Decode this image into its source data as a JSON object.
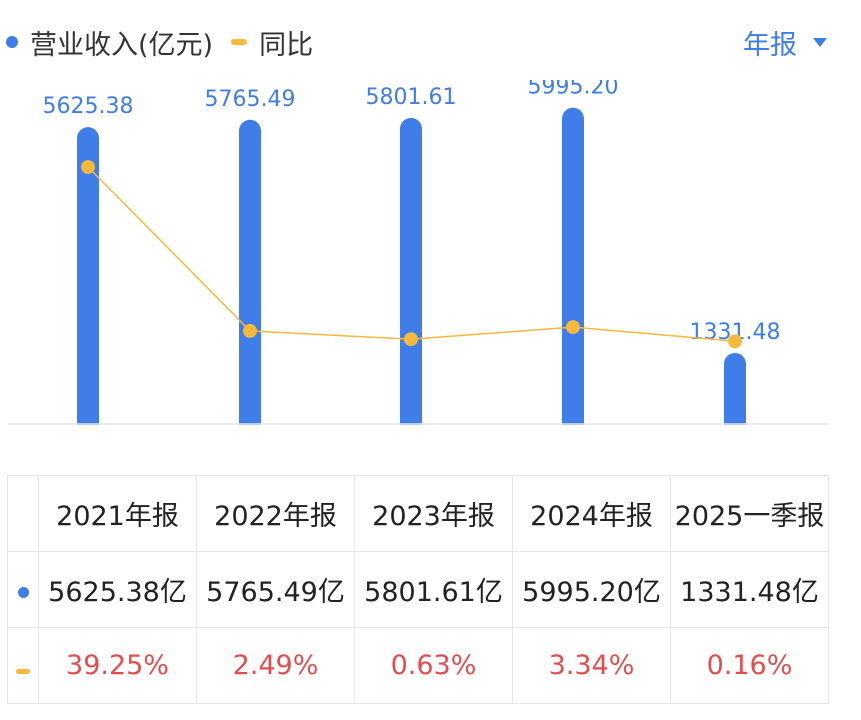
{
  "legend": {
    "revenue_label": "营业收入(亿元)",
    "yoy_label": "同比"
  },
  "period_selector": {
    "label": "年报"
  },
  "colors": {
    "bar": "#3f7de8",
    "line": "#f6b93b",
    "growth_text": "#e34d4d"
  },
  "chart_data": {
    "type": "bar",
    "categories": [
      "2021年报",
      "2022年报",
      "2023年报",
      "2024年报",
      "2025一季报"
    ],
    "series": [
      {
        "name": "营业收入(亿元)",
        "type": "bar",
        "values": [
          5625.38,
          5765.49,
          5801.61,
          5995.2,
          1331.48
        ],
        "labels": [
          "5625.38",
          "5765.49",
          "5801.61",
          "5995.20",
          "1331.48"
        ]
      },
      {
        "name": "同比",
        "type": "line",
        "values": [
          39.25,
          2.49,
          0.63,
          3.34,
          0.16
        ]
      }
    ],
    "legend_position": "top-left",
    "grid": false
  },
  "table": {
    "headers": [
      "2021年报",
      "2022年报",
      "2023年报",
      "2024年报",
      "2025一季报"
    ],
    "revenue": [
      "5625.38亿",
      "5765.49亿",
      "5801.61亿",
      "5995.20亿",
      "1331.48亿"
    ],
    "growth": [
      "39.25%",
      "2.49%",
      "0.63%",
      "3.34%",
      "0.16%"
    ]
  }
}
